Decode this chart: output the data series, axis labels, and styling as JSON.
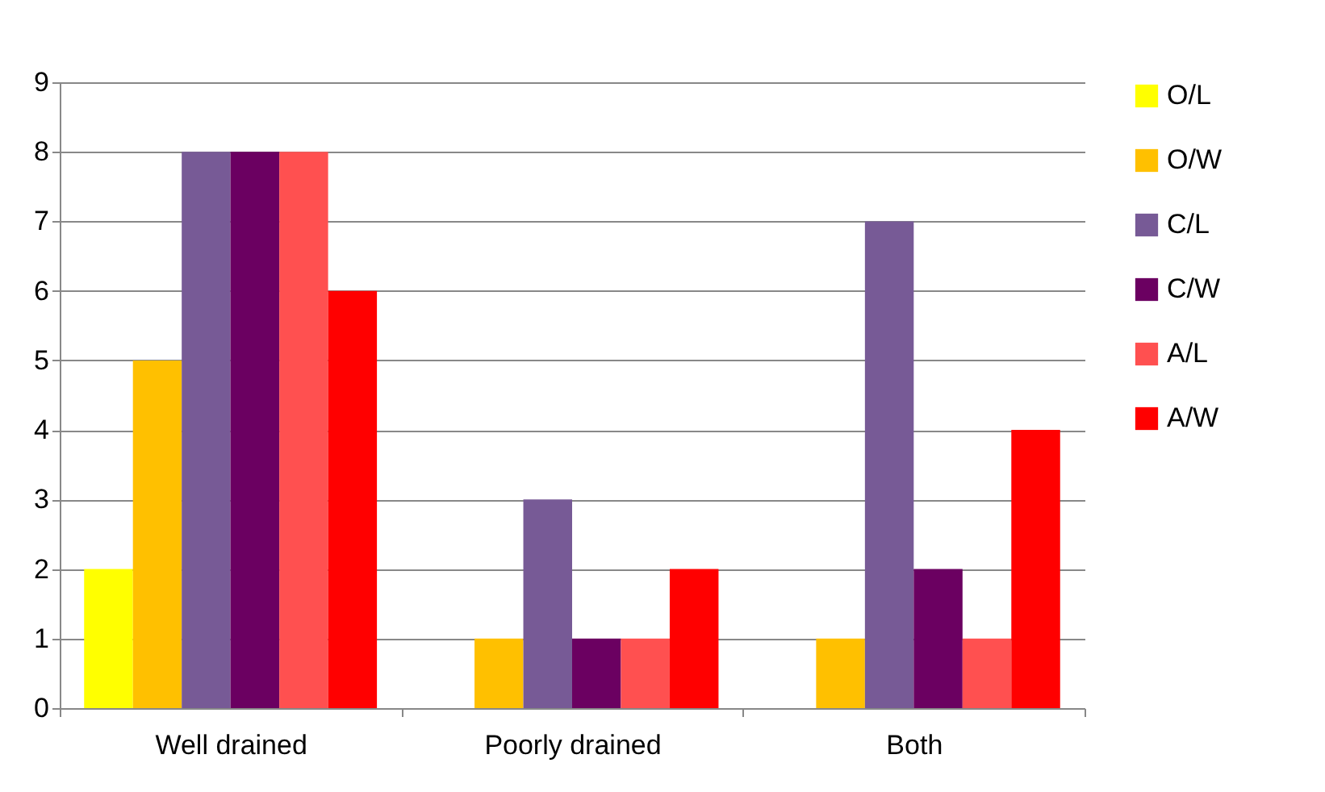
{
  "chart_data": {
    "type": "bar",
    "categories": [
      "Well drained",
      "Poorly drained",
      "Both"
    ],
    "series": [
      {
        "name": "O/L",
        "color": "#ffff00",
        "values": [
          2,
          0,
          0
        ]
      },
      {
        "name": "O/W",
        "color": "#ffc000",
        "values": [
          5,
          1,
          1
        ]
      },
      {
        "name": "C/L",
        "color": "#775a96",
        "values": [
          8,
          3,
          7
        ]
      },
      {
        "name": "C/W",
        "color": "#6b0061",
        "values": [
          8,
          1,
          2
        ]
      },
      {
        "name": "A/L",
        "color": "#ff5050",
        "values": [
          8,
          1,
          1
        ]
      },
      {
        "name": "A/W",
        "color": "#ff0000",
        "values": [
          6,
          2,
          4
        ]
      }
    ],
    "ylim": [
      0,
      9
    ],
    "yticks": [
      0,
      1,
      2,
      3,
      4,
      5,
      6,
      7,
      8,
      9
    ],
    "grid": "y",
    "legend": "right"
  }
}
